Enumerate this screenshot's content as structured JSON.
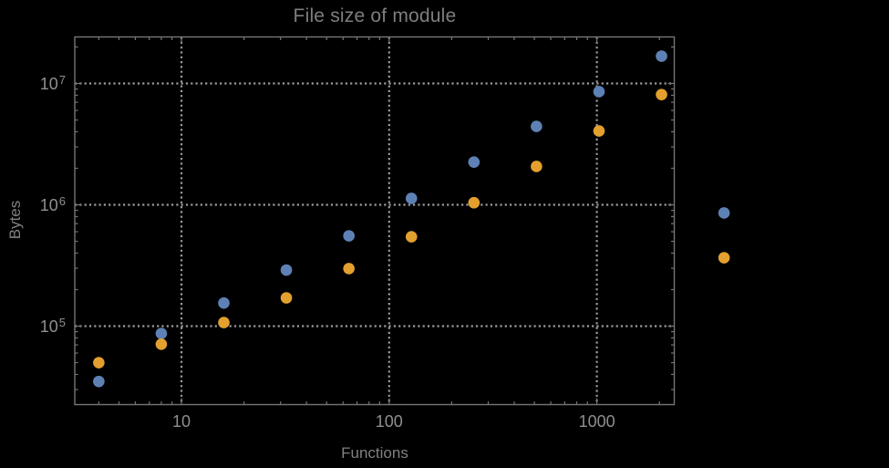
{
  "chart_data": {
    "type": "scatter",
    "title": "File size of module",
    "xlabel": "Functions",
    "ylabel": "Bytes",
    "x_scale": "log10",
    "y_scale": "log10",
    "xlim": [
      3.07,
      2390
    ],
    "ylim": [
      22500,
      24500000
    ],
    "grid": "dotted gridlines at decade ticks only, gray",
    "legend": "none",
    "x": [
      4,
      8,
      16,
      32,
      64,
      128,
      256,
      512,
      1024,
      2048,
      4096
    ],
    "series": [
      {
        "name": "blue",
        "color": "#5e81b5",
        "values": [
          35000,
          87000,
          155000,
          290000,
          555000,
          1130000,
          2250000,
          4430000,
          8560000,
          16800000,
          856000
        ]
      },
      {
        "name": "orange",
        "color": "#e3a02e",
        "values": [
          50000,
          71000,
          107000,
          171000,
          298000,
          545000,
          1040000,
          2070000,
          4060000,
          8100000,
          366000
        ]
      }
    ],
    "x_tick_values": [
      10,
      100,
      1000
    ],
    "x_tick_labels": [
      "10",
      "100",
      "1000"
    ],
    "y_tick_values": [
      100000,
      1000000,
      10000000
    ],
    "y_tick_labels": [
      "10^5",
      "10^6",
      "10^7"
    ]
  },
  "style": {
    "background": "#000000",
    "frame_color": "#757575",
    "grid_color": "#9b9b9b",
    "tick_label_color": "#8f8f8f",
    "title_color": "#7e7e7e",
    "axis_label_color": "#818181"
  }
}
